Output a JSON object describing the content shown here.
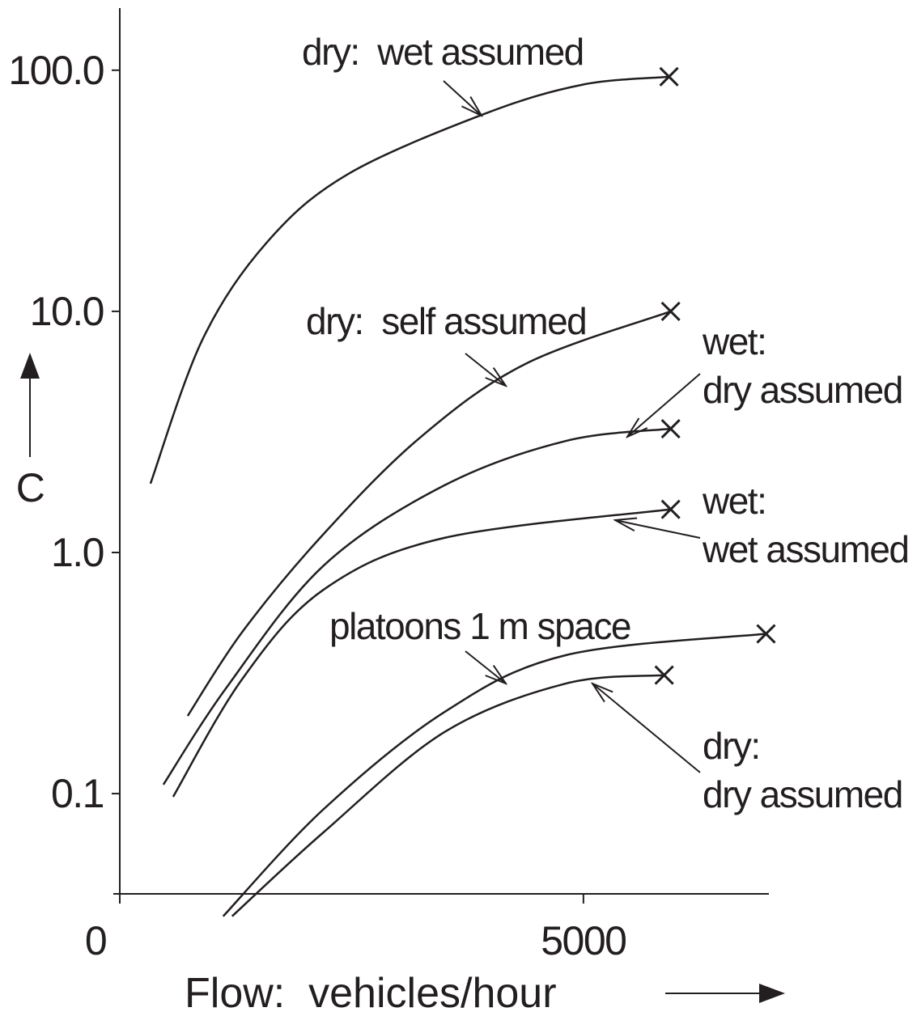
{
  "chart_data": {
    "type": "line",
    "xlabel": "Flow:  vehicles/hour",
    "ylabel": "C",
    "log_y": true,
    "xlim": [
      0,
      7000
    ],
    "xticks": [
      0,
      5000
    ],
    "ylim": [
      0.0384,
      181
    ],
    "yticks": [
      {
        "value": 100,
        "label": "100.0"
      },
      {
        "value": 10,
        "label": "10.0"
      },
      {
        "value": 1,
        "label": "1.0"
      },
      0.1
    ],
    "color": "#231f20",
    "series": [
      {
        "name": "dry:  wet assumed",
        "x": [
          331,
          889,
          1585,
          2456,
          3937,
          4983,
          5923
        ],
        "values": [
          1.93,
          7.6,
          19.3,
          37,
          66,
          87,
          94
        ]
      },
      {
        "name": "dry:  self assumed",
        "x": [
          732,
          1324,
          2195,
          3240,
          4373,
          5941
        ],
        "values": [
          0.21,
          0.47,
          1.19,
          3.0,
          6.05,
          10
        ]
      },
      {
        "name": "wet: dry assumed",
        "x": [
          470,
          1150,
          2195,
          3502,
          4808,
          5941
        ],
        "values": [
          0.109,
          0.275,
          0.88,
          1.9,
          2.9,
          3.26
        ]
      },
      {
        "name": "wet: wet assumed",
        "x": [
          575,
          1324,
          2195,
          3502,
          5941
        ],
        "values": [
          0.097,
          0.3,
          0.7,
          1.15,
          1.51
        ]
      },
      {
        "name": "platoons 1 m space",
        "x": [
          1115,
          2195,
          3502,
          4808,
          6969
        ],
        "values": [
          0.031,
          0.086,
          0.218,
          0.375,
          0.46
        ]
      },
      {
        "name": "dry: dry assumed",
        "x": [
          1211,
          2195,
          3502,
          4808,
          5871
        ],
        "values": [
          0.031,
          0.069,
          0.18,
          0.286,
          0.31
        ]
      }
    ],
    "annotations": [
      {
        "lines": [
          "dry:  wet assumed"
        ]
      },
      {
        "lines": [
          "dry:  self assumed"
        ]
      },
      {
        "lines": [
          "wet:",
          "dry assumed"
        ]
      },
      {
        "lines": [
          "wet:",
          "wet assumed"
        ]
      },
      {
        "lines": [
          "platoons 1 m space"
        ]
      },
      {
        "lines": [
          "dry:",
          "dry assumed"
        ]
      }
    ]
  }
}
